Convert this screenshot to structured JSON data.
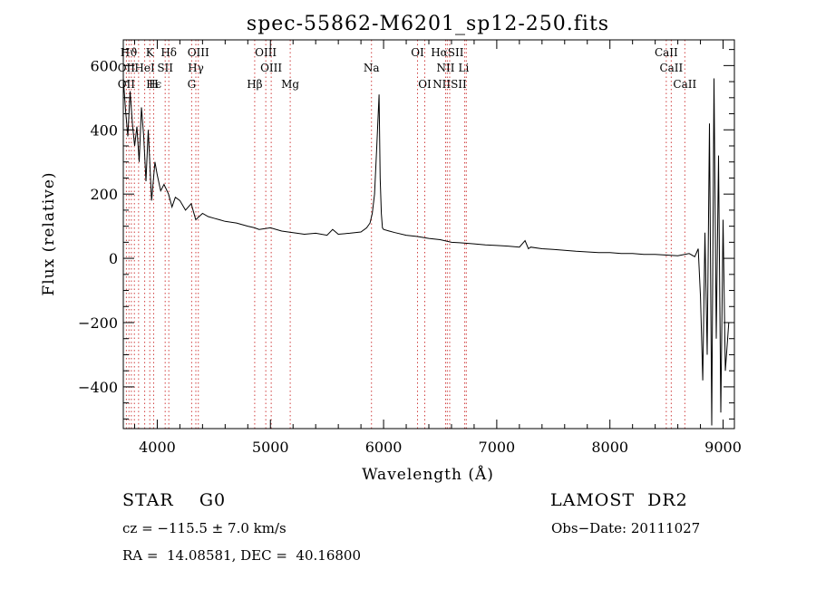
{
  "chart_data": {
    "type": "line",
    "title": "spec-55862-M6201_sp12-250.fits",
    "xlabel": "Wavelength (Å)",
    "ylabel": "Flux (relative)",
    "xlim": [
      3700,
      9100
    ],
    "ylim": [
      -530,
      680
    ],
    "xticks": [
      4000,
      5000,
      6000,
      7000,
      8000,
      9000
    ],
    "yticks": [
      -400,
      -200,
      0,
      200,
      400,
      600
    ],
    "xtick_labels": [
      "4000",
      "5000",
      "6000",
      "7000",
      "8000",
      "9000"
    ],
    "ytick_labels": [
      "−400",
      "−200",
      "0",
      "200",
      "400",
      "600"
    ],
    "grid": false,
    "line_color": "#000000",
    "marker_color": "#d04040",
    "series": [
      {
        "x": [
          3700,
          3720,
          3740,
          3760,
          3780,
          3800,
          3820,
          3840,
          3860,
          3880,
          3900,
          3920,
          3950,
          3980,
          4000,
          4030,
          4060,
          4100,
          4130,
          4160,
          4200,
          4250,
          4300,
          4340,
          4400,
          4450,
          4500,
          4550,
          4600,
          4700,
          4800,
          4860,
          4900,
          5000,
          5100,
          5200,
          5300,
          5400,
          5500,
          5550,
          5600,
          5700,
          5800,
          5850,
          5880,
          5900,
          5920,
          5940,
          5960,
          5970,
          5980,
          5990,
          6000,
          6050,
          6100,
          6200,
          6300,
          6400,
          6500,
          6600,
          6700,
          6800,
          6900,
          7000,
          7100,
          7200,
          7250,
          7280,
          7300,
          7400,
          7500,
          7600,
          7700,
          7800,
          7900,
          8000,
          8100,
          8200,
          8300,
          8400,
          8500,
          8600,
          8700,
          8750,
          8780,
          8800,
          8820,
          8840,
          8860,
          8880,
          8900,
          8920,
          8940,
          8960,
          8980,
          9000,
          9020,
          9050
        ],
        "y": [
          560,
          460,
          380,
          520,
          420,
          350,
          410,
          300,
          470,
          380,
          240,
          400,
          180,
          300,
          260,
          210,
          230,
          200,
          160,
          190,
          180,
          150,
          170,
          120,
          140,
          130,
          125,
          120,
          115,
          110,
          100,
          95,
          90,
          95,
          85,
          80,
          75,
          78,
          72,
          90,
          75,
          78,
          82,
          95,
          110,
          140,
          200,
          350,
          510,
          250,
          140,
          95,
          90,
          85,
          80,
          72,
          68,
          62,
          58,
          50,
          48,
          45,
          42,
          40,
          38,
          35,
          55,
          30,
          35,
          30,
          28,
          25,
          22,
          20,
          18,
          18,
          15,
          15,
          12,
          12,
          10,
          8,
          15,
          5,
          30,
          -120,
          -380,
          80,
          -300,
          420,
          -520,
          560,
          -250,
          320,
          -480,
          120,
          -350,
          -200
        ]
      }
    ],
    "line_ids": [
      {
        "label": "Hϑ",
        "x": 3750
      },
      {
        "label": "K",
        "x": 3934
      },
      {
        "label": "Hδ",
        "x": 4102
      },
      {
        "label": "OIII",
        "x": 4363
      },
      {
        "label": "OIII",
        "x": 4959
      },
      {
        "label": "OI",
        "x": 6300
      },
      {
        "label": "HαSII",
        "x": 6563
      },
      {
        "label": "CaII",
        "x": 8498
      },
      {
        "label": "OII",
        "x": 3727
      },
      {
        "label": "HeI",
        "x": 3889
      },
      {
        "label": "SII",
        "x": 4070
      },
      {
        "label": "Hγ",
        "x": 4341
      },
      {
        "label": "OIII",
        "x": 5007
      },
      {
        "label": "Na",
        "x": 5893
      },
      {
        "label": "NII",
        "x": 6548
      },
      {
        "label": "Li",
        "x": 6708
      },
      {
        "label": "CaII",
        "x": 8542
      },
      {
        "label": "OII",
        "x": 3727
      },
      {
        "label": "Hϵ",
        "x": 3970
      },
      {
        "label": "H",
        "x": 3968
      },
      {
        "label": "G",
        "x": 4304
      },
      {
        "label": "Hβ",
        "x": 4861
      },
      {
        "label": "Mg",
        "x": 5175
      },
      {
        "label": "OI",
        "x": 6364
      },
      {
        "label": "NIISII",
        "x": 6584
      },
      {
        "label": "CaII",
        "x": 8662
      }
    ],
    "marker_lines": [
      3727,
      3750,
      3771,
      3798,
      3835,
      3889,
      3934,
      3968,
      4070,
      4102,
      4304,
      4341,
      4363,
      4861,
      4959,
      5007,
      5175,
      5893,
      6300,
      6364,
      6548,
      6563,
      6584,
      6717,
      6731,
      8498,
      8542,
      8662
    ]
  },
  "info": {
    "object": "STAR    G0",
    "survey": "LAMOST  DR2",
    "cz": "cz = −115.5 ± 7.0 km/s",
    "obs_date": "Obs−Date: 20111027",
    "coords": "RA =  14.08581, DEC =  40.16800"
  }
}
